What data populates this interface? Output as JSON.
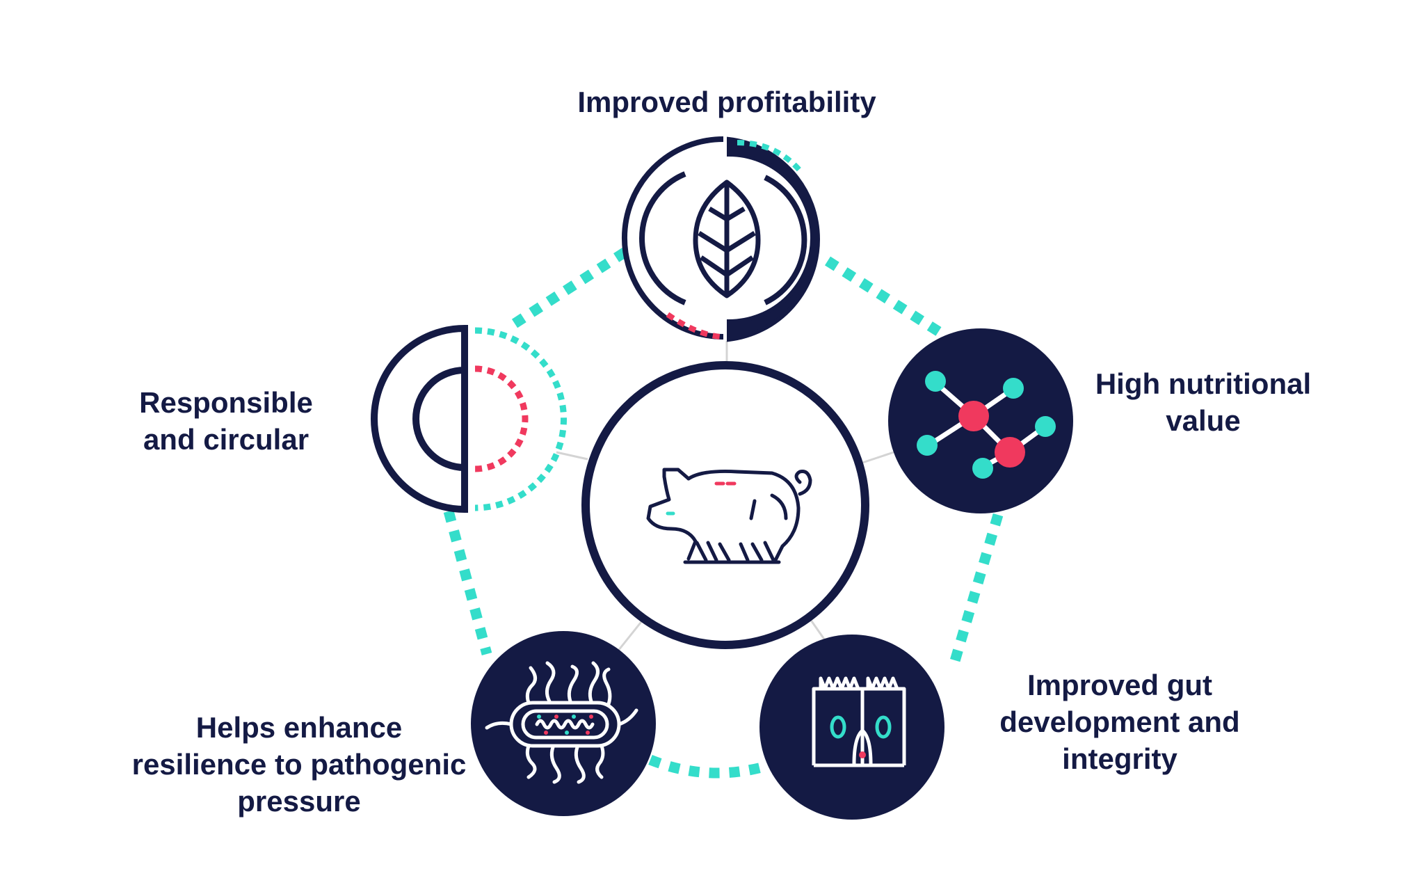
{
  "colors": {
    "navy": "#141a44",
    "teal": "#34ddca",
    "pink": "#f0395e",
    "connector": "#d4d4d4",
    "background": "#ffffff"
  },
  "center": {
    "icon": "pig-icon"
  },
  "benefits": [
    {
      "id": "profitability",
      "lines": [
        "Improved profitability"
      ],
      "icon": "leaf-icon"
    },
    {
      "id": "nutrition",
      "lines": [
        "High nutritional",
        "value"
      ],
      "icon": "molecule-icon"
    },
    {
      "id": "gut",
      "lines": [
        "Improved gut",
        "development and",
        "integrity"
      ],
      "icon": "intestinal-villi-icon"
    },
    {
      "id": "resilience",
      "lines": [
        "Helps enhance",
        "resilience to pathogenic",
        "pressure"
      ],
      "icon": "bacterium-icon"
    },
    {
      "id": "circular",
      "lines": [
        "Responsible",
        "and circular"
      ],
      "icon": "half-circle-icon"
    }
  ]
}
